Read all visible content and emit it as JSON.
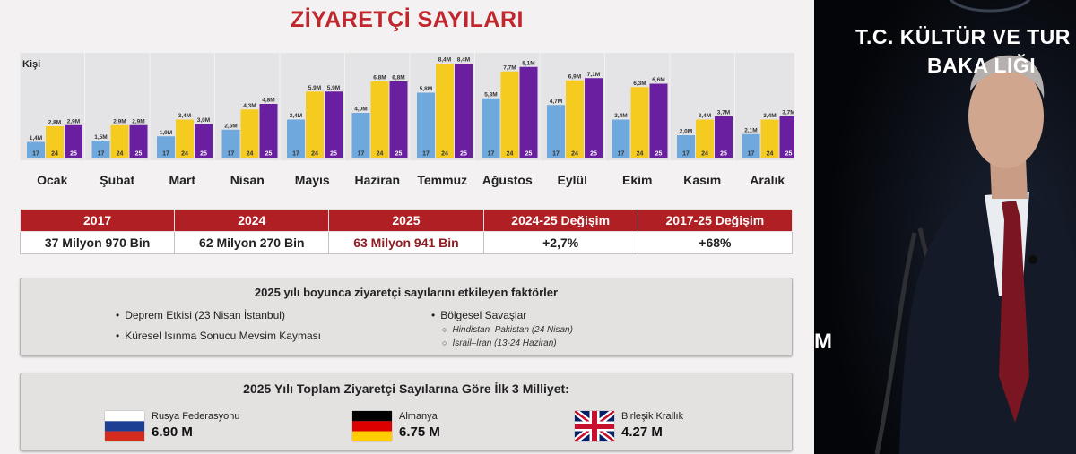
{
  "slide": {
    "title": "ZİYARETÇİ SAYILARI"
  },
  "chart_data": {
    "type": "bar",
    "ylabel": "Kişi",
    "categories": [
      "Ocak",
      "Şubat",
      "Mart",
      "Nisan",
      "Mayıs",
      "Haziran",
      "Temmuz",
      "Ağustos",
      "Eylül",
      "Ekim",
      "Kasım",
      "Aralık"
    ],
    "series": [
      {
        "name": "17",
        "color": "#6fa8dc",
        "values": [
          1.4,
          1.5,
          1.9,
          2.5,
          3.4,
          4.0,
          5.8,
          5.3,
          4.7,
          3.4,
          2.0,
          2.1
        ],
        "labels": [
          "1,4M",
          "1,5M",
          "1,9M",
          "2,5M",
          "3,4M",
          "4,0M",
          "5,8M",
          "5,3M",
          "4,7M",
          "3,4M",
          "2,0M",
          "2,1M"
        ]
      },
      {
        "name": "24",
        "color": "#f6cb1f",
        "values": [
          2.8,
          2.9,
          3.4,
          4.3,
          5.9,
          6.8,
          8.4,
          7.7,
          6.9,
          6.3,
          3.4,
          3.4
        ],
        "labels": [
          "2,8M",
          "2,9M",
          "3,4M",
          "4,3M",
          "5,9M",
          "6,8M",
          "8,4M",
          "7,7M",
          "6,9M",
          "6,3M",
          "3,4M",
          "3,4M"
        ]
      },
      {
        "name": "25",
        "color": "#6a1fa0",
        "values": [
          2.9,
          2.9,
          3.0,
          4.8,
          5.9,
          6.8,
          8.4,
          8.1,
          7.1,
          6.6,
          3.7,
          3.7
        ],
        "labels": [
          "2,9M",
          "2,9M",
          "3,0M",
          "4,8M",
          "5,9M",
          "6,8M",
          "8,4M",
          "8,1M",
          "7,1M",
          "6,6M",
          "3,7M",
          "3,7M"
        ]
      }
    ],
    "ylim": [
      0,
      8.4
    ]
  },
  "summary": {
    "headers": [
      "2017",
      "2024",
      "2025",
      "2024-25 Değişim",
      "2017-25 Değişim"
    ],
    "values": [
      "37 Milyon 970 Bin",
      "62 Milyon 270 Bin",
      "63 Milyon 941 Bin",
      "+2,7%",
      "+68%"
    ]
  },
  "factors": {
    "title": "2025 yılı boyunca ziyaretçi sayılarını etkileyen faktörler",
    "left": [
      "Deprem Etkisi (23 Nisan İstanbul)",
      "Küresel Isınma Sonucu Mevsim Kayması"
    ],
    "right": "Bölgesel Savaşlar",
    "right_sub": [
      "Hindistan–Pakistan (24 Nisan)",
      "İsrail–İran (13-24 Haziran)"
    ]
  },
  "nations": {
    "title": "2025 Yılı Toplam Ziyaretçi Sayılarına Göre İlk 3 Milliyet:",
    "items": [
      {
        "name": "Rusya Federasyonu",
        "value": "6.90 M",
        "flag_icon": "russia-flag-icon"
      },
      {
        "name": "Almanya",
        "value": "6.75 M",
        "flag_icon": "germany-flag-icon"
      },
      {
        "name": "Birleşik Krallık",
        "value": "4.27 M",
        "flag_icon": "uk-flag-icon"
      }
    ]
  },
  "video": {
    "ministry_line1": "T.C. KÜLTÜR VE TUR",
    "ministry_line2": "BAKA  LIĞI",
    "side_letter": "M"
  }
}
